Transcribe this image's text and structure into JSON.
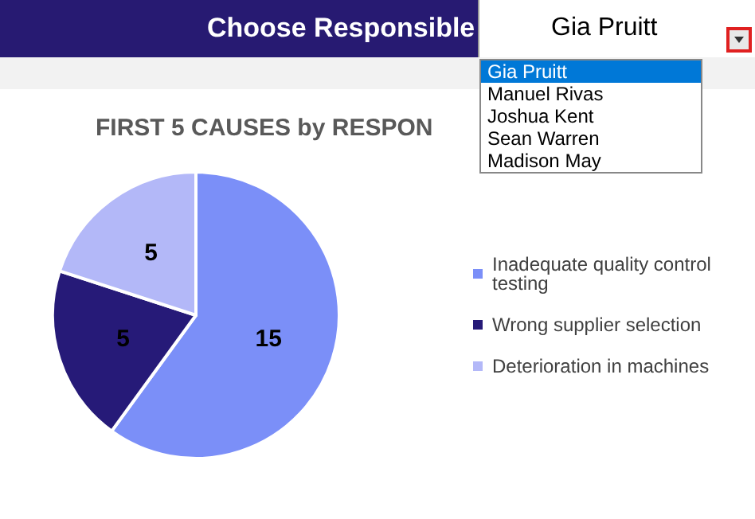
{
  "chart_data": {
    "type": "pie",
    "title": "FIRST 5 CAUSES by RESPON",
    "categories": [
      "Inadequate quality control testing",
      "Wrong supplier selection",
      "Deterioration in machines"
    ],
    "values": [
      15,
      5,
      5
    ],
    "colors": [
      "#7b8ff8",
      "#261a78",
      "#b3b8f8"
    ],
    "data_labels": true,
    "legend": "right",
    "annotations": [
      "Choose Responsible",
      "Gia Pruitt",
      "Gia Pruitt",
      "Manuel Rivas",
      "Joshua Kent",
      "Sean Warren",
      "Madison May"
    ]
  }
}
